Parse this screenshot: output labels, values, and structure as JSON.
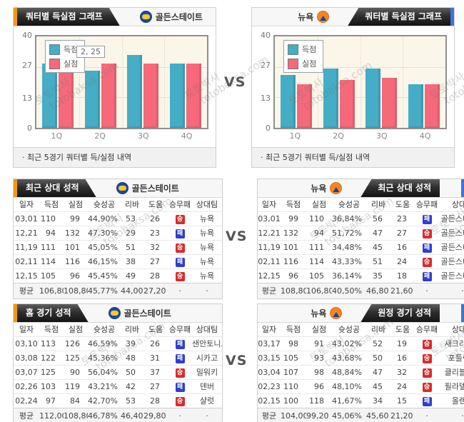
{
  "page": {
    "vs": "VS"
  },
  "watermark": {
    "kr": "토토박사",
    "en": "totobaksa.com"
  },
  "teams": {
    "left": {
      "name": "골든스테이트"
    },
    "right": {
      "name": "뉴욕"
    }
  },
  "chart_section": {
    "title": "쿼터별 득실점 그래프",
    "caption": "· 최근 5경기 쿼터별 득/실점 내역",
    "legend": [
      "득점",
      "실점"
    ],
    "yticks": [
      "40",
      "27",
      "13",
      "0"
    ]
  },
  "chart_data": [
    {
      "type": "bar",
      "team": "골든스테이트",
      "title": "쿼터별 득실점 그래프",
      "categories": [
        "1Q",
        "2Q",
        "3Q",
        "4Q"
      ],
      "series": [
        {
          "name": "득점",
          "color": "#45adc5",
          "values": [
            28,
            25,
            32,
            28
          ]
        },
        {
          "name": "실점",
          "color": "#f5697a",
          "values": [
            31,
            28,
            28,
            28
          ]
        }
      ],
      "ylim": [
        0,
        40
      ],
      "yticks": [
        40,
        27,
        13,
        0
      ],
      "legend_position": "top-left",
      "grid": true,
      "tooltip": "2, 25"
    },
    {
      "type": "bar",
      "team": "뉴욕",
      "title": "쿼터별 득실점 그래프",
      "categories": [
        "1Q",
        "2Q",
        "3Q",
        "4Q"
      ],
      "series": [
        {
          "name": "득점",
          "color": "#45adc5",
          "values": [
            23,
            26,
            26,
            19
          ]
        },
        {
          "name": "실점",
          "color": "#f5697a",
          "values": [
            19,
            21,
            22,
            19
          ]
        }
      ],
      "ylim": [
        0,
        40
      ],
      "yticks": [
        40,
        27,
        13,
        0
      ],
      "legend_position": "top-left",
      "grid": true,
      "tooltip": null
    }
  ],
  "tables": {
    "headers": [
      "일자",
      "득점",
      "실점",
      "슛성공",
      "리바",
      "도움",
      "승무패",
      "상대팀"
    ],
    "recent_left": {
      "title": "최근 상대 성적",
      "team": "골든스테이트",
      "rows": [
        [
          "03,01",
          "110",
          "99",
          "44,90%",
          "53",
          "26",
          "승",
          "뉴욕"
        ],
        [
          "12,21",
          "94",
          "132",
          "47,30%",
          "29",
          "23",
          "패",
          "뉴욕"
        ],
        [
          "11,19",
          "111",
          "101",
          "45,05%",
          "51",
          "32",
          "승",
          "뉴욕"
        ],
        [
          "02,11",
          "114",
          "116",
          "46,15%",
          "38",
          "27",
          "패",
          "뉴욕"
        ],
        [
          "12,15",
          "105",
          "96",
          "45,45%",
          "49",
          "28",
          "승",
          "뉴욕"
        ]
      ],
      "avg": [
        "평균",
        "106,80",
        "108,80",
        "45,77%",
        "44,00",
        "27,20",
        "·",
        "·"
      ]
    },
    "recent_right": {
      "title": "최근 상대 성적",
      "team": "뉴욕",
      "rows": [
        [
          "03,01",
          "99",
          "110",
          "36,84%",
          "56",
          "23",
          "패",
          "골든스테이트"
        ],
        [
          "12,21",
          "132",
          "94",
          "51,72%",
          "47",
          "27",
          "승",
          "골든스테이트"
        ],
        [
          "11,19",
          "101",
          "111",
          "34,48%",
          "45",
          "16",
          "패",
          "골든스테이트"
        ],
        [
          "02,11",
          "116",
          "114",
          "43,33%",
          "51",
          "24",
          "승",
          "골든스테이트"
        ],
        [
          "12,15",
          "96",
          "105",
          "36,14%",
          "35",
          "18",
          "패",
          "골든스테이트"
        ]
      ],
      "avg": [
        "평균",
        "108,80",
        "106,80",
        "40,50%",
        "46,80",
        "21,60",
        "·",
        "·"
      ]
    },
    "home_left": {
      "title": "홈 경기 성적",
      "team": "골든스테이트",
      "rows": [
        [
          "03,10",
          "113",
          "126",
          "46,59%",
          "39",
          "26",
          "패",
          "샌안토니오"
        ],
        [
          "03,08",
          "122",
          "125",
          "45,36%",
          "48",
          "31",
          "패",
          "시카고"
        ],
        [
          "03,07",
          "125",
          "90",
          "56,04%",
          "50",
          "37",
          "승",
          "밀워키"
        ],
        [
          "02,26",
          "103",
          "119",
          "43,21%",
          "42",
          "27",
          "패",
          "덴버"
        ],
        [
          "02,24",
          "97",
          "84",
          "42,70%",
          "53",
          "28",
          "승",
          "샬럿"
        ]
      ],
      "avg": [
        "평균",
        "112,00",
        "108,80",
        "46,78%",
        "46,40",
        "29,80",
        "·",
        "·"
      ]
    },
    "away_right": {
      "title": "원정 경기 성적",
      "team": "뉴욕",
      "rows": [
        [
          "03,17",
          "98",
          "91",
          "43,02%",
          "52",
          "19",
          "승",
          "새크라멘토"
        ],
        [
          "03,15",
          "105",
          "93",
          "43,68%",
          "50",
          "16",
          "승",
          "포틀랜드"
        ],
        [
          "03,04",
          "107",
          "98",
          "48,84%",
          "47",
          "32",
          "승",
          "클리블랜드"
        ],
        [
          "02,23",
          "110",
          "96",
          "48,10%",
          "45",
          "24",
          "승",
          "필라델피아"
        ],
        [
          "02,15",
          "100",
          "118",
          "41,67%",
          "34",
          "15",
          "패",
          "올랜도"
        ]
      ],
      "avg": [
        "평균",
        "104,00",
        "99,20",
        "45,06%",
        "45,60",
        "21,20",
        "·",
        "·"
      ]
    }
  }
}
